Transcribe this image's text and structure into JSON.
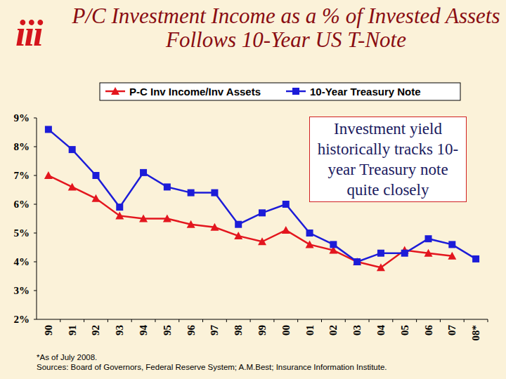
{
  "chart_data": {
    "type": "line",
    "logo": "iii",
    "title": "P/C Investment Income as a % of Invested Assets Follows 10-Year US T-Note",
    "annotation": "Investment yield historically tracks 10-year Treasury note quite closely",
    "footnote": "*As of July 2008.",
    "source": "Sources: Board of Governors, Federal Reserve System; A.M.Best; Insurance Information Institute.",
    "categories": [
      "90",
      "91",
      "92",
      "93",
      "94",
      "95",
      "96",
      "97",
      "98",
      "99",
      "00",
      "01",
      "02",
      "03",
      "04",
      "05",
      "06",
      "07",
      "08*"
    ],
    "series": [
      {
        "name": "P-C Inv Income/Inv Assets",
        "color": "#e3161e",
        "marker": "triangle",
        "values": [
          7.0,
          6.6,
          6.2,
          5.6,
          5.5,
          5.5,
          5.3,
          5.2,
          4.9,
          4.7,
          5.1,
          4.6,
          4.4,
          4.0,
          3.8,
          4.4,
          4.3,
          4.2,
          null
        ]
      },
      {
        "name": "10-Year Treasury Note",
        "color": "#1c1cd8",
        "marker": "square",
        "values": [
          8.6,
          7.9,
          7.0,
          5.9,
          7.1,
          6.6,
          6.4,
          6.4,
          5.3,
          5.7,
          6.0,
          5.0,
          4.6,
          4.0,
          4.3,
          4.3,
          4.8,
          4.6,
          4.1
        ]
      }
    ],
    "ylim": [
      2,
      9
    ],
    "yticks": [
      {
        "value": 2,
        "label": "2%"
      },
      {
        "value": 3,
        "label": "3%"
      },
      {
        "value": 4,
        "label": "4%"
      },
      {
        "value": 5,
        "label": "5%"
      },
      {
        "value": 6,
        "label": "6%"
      },
      {
        "value": 7,
        "label": "7%"
      },
      {
        "value": 8,
        "label": "8%"
      },
      {
        "value": 9,
        "label": "9%"
      }
    ],
    "grid": false,
    "legend": "top"
  }
}
